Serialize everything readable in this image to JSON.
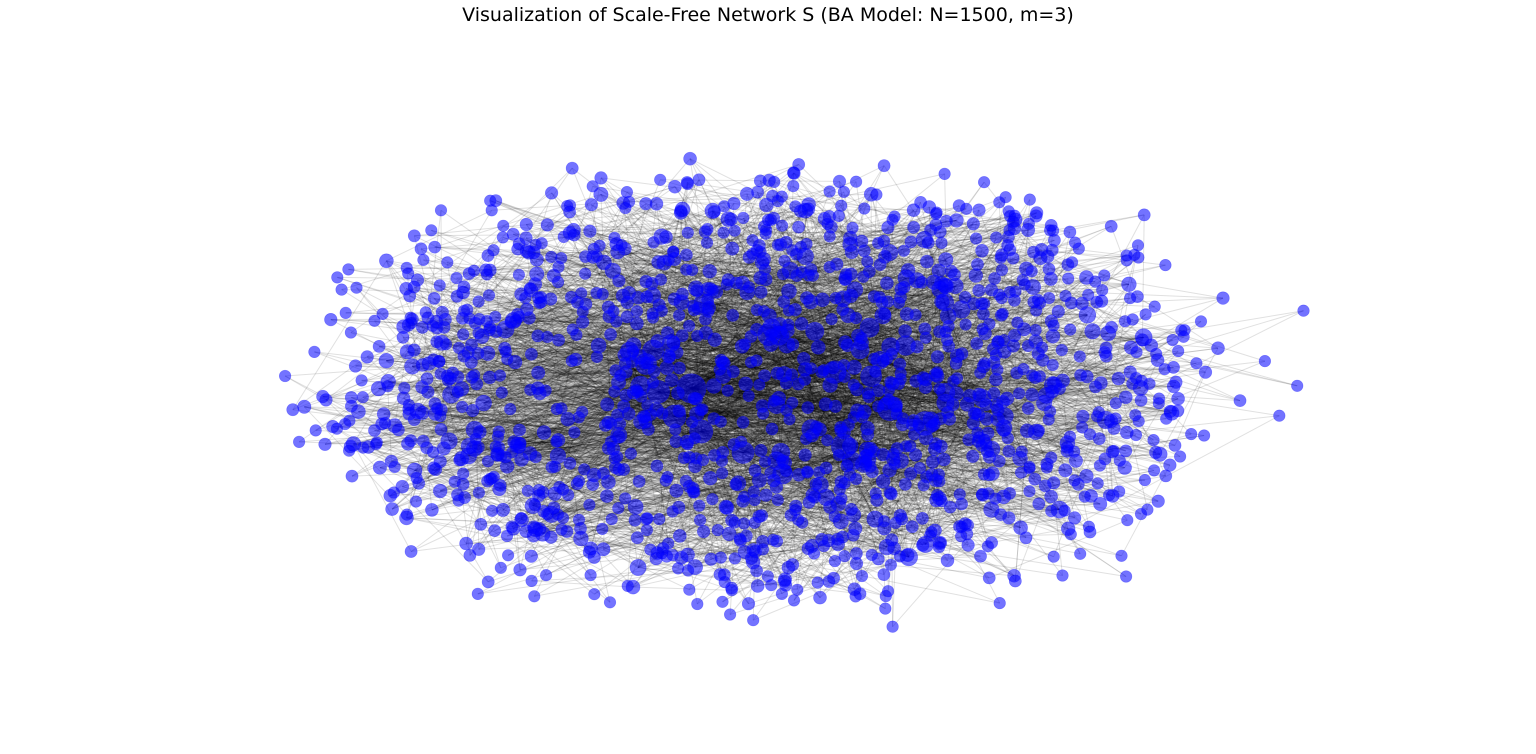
{
  "title": "Visualization of Scale-Free Network S (BA Model: N=1500, m=3)",
  "network": {
    "model": "BA",
    "n_nodes": 1500,
    "m": 3,
    "layout": "spring",
    "node_color": "#0000ff",
    "node_alpha": 0.55,
    "edge_color": "#000000",
    "edge_alpha": 0.12,
    "background": "#ffffff"
  }
}
